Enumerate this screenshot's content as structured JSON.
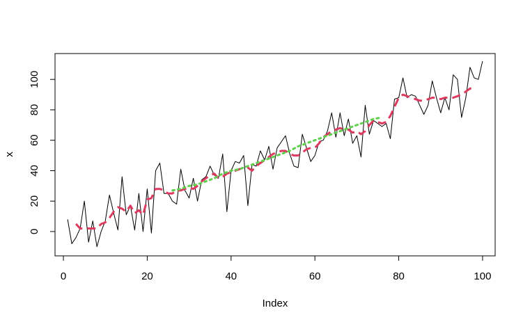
{
  "chart_data": {
    "type": "line",
    "title": "",
    "xlabel": "Index",
    "ylabel": "x",
    "xlim": [
      -2,
      103
    ],
    "ylim": [
      -16,
      117
    ],
    "xticks": [
      0,
      20,
      40,
      60,
      80,
      100
    ],
    "yticks": [
      0,
      20,
      40,
      60,
      80,
      100
    ],
    "grid": false,
    "legend": "none",
    "series": [
      {
        "style": "solid",
        "color": "#000000",
        "x": [
          1,
          2,
          3,
          4,
          5,
          6,
          7,
          8,
          9,
          10,
          11,
          12,
          13,
          14,
          15,
          16,
          17,
          18,
          19,
          20,
          21,
          22,
          23,
          24,
          25,
          26,
          27,
          28,
          29,
          30,
          31,
          32,
          33,
          34,
          35,
          36,
          37,
          38,
          39,
          40,
          41,
          42,
          43,
          44,
          45,
          46,
          47,
          48,
          49,
          50,
          51,
          52,
          53,
          54,
          55,
          56,
          57,
          58,
          59,
          60,
          61,
          62,
          63,
          64,
          65,
          66,
          67,
          68,
          69,
          70,
          71,
          72,
          73,
          74,
          75,
          76,
          77,
          78,
          79,
          80,
          81,
          82,
          83,
          84,
          85,
          86,
          87,
          88,
          89,
          90,
          91,
          92,
          93,
          94,
          95,
          96,
          97,
          98,
          99,
          100
        ],
        "y": [
          8,
          -8,
          -4,
          2,
          20,
          -7,
          7,
          -10,
          0,
          7,
          24,
          12,
          1,
          36,
          11,
          17,
          1,
          25,
          0,
          28,
          -1,
          40,
          45,
          25,
          25,
          20,
          18,
          41,
          27,
          22,
          35,
          20,
          34,
          36,
          43,
          37,
          35,
          51,
          13,
          40,
          46,
          45,
          50,
          17,
          44,
          43,
          53,
          47,
          56,
          41,
          55,
          59,
          63,
          51,
          43,
          42,
          64,
          55,
          46,
          50,
          59,
          60,
          66,
          78,
          62,
          78,
          63,
          74,
          58,
          63,
          49,
          83,
          64,
          73,
          71,
          69,
          71,
          61,
          87,
          88,
          101,
          88,
          90,
          89,
          83,
          77,
          83,
          99,
          88,
          78,
          88,
          80,
          103,
          100,
          75,
          88,
          108,
          101,
          100,
          112
        ]
      },
      {
        "style": "dashed",
        "color": "#dc3a5e",
        "x": [
          3,
          4,
          5,
          6,
          7,
          8,
          9,
          10,
          11,
          12,
          13,
          14,
          15,
          16,
          17,
          18,
          19,
          20,
          21,
          22,
          23,
          24,
          25,
          26,
          27,
          28,
          29,
          30,
          31,
          32,
          33,
          34,
          35,
          36,
          37,
          38,
          39,
          40,
          41,
          42,
          43,
          44,
          45,
          46,
          47,
          48,
          49,
          50,
          51,
          52,
          53,
          54,
          55,
          56,
          57,
          58,
          59,
          60,
          61,
          62,
          63,
          64,
          65,
          66,
          67,
          68,
          69,
          70,
          71,
          72,
          73,
          74,
          75,
          76,
          77,
          78,
          79,
          80,
          81,
          82,
          83,
          84,
          85,
          86,
          87,
          88,
          89,
          90,
          91,
          92,
          93,
          94,
          95,
          96,
          97,
          98
        ],
        "y": [
          5,
          2,
          2,
          2,
          2,
          2,
          5,
          6,
          9,
          13,
          16,
          15,
          13,
          17,
          12,
          14,
          11,
          21,
          22,
          28,
          28,
          27,
          25,
          25,
          27,
          27,
          28,
          29,
          28,
          30,
          33,
          35,
          37,
          38,
          35,
          36,
          38,
          39,
          40,
          41,
          42,
          42,
          40,
          43,
          45,
          47,
          49,
          51,
          52,
          53,
          53,
          51,
          50,
          50,
          52,
          54,
          55,
          55,
          58,
          62,
          64,
          66,
          67,
          68,
          67,
          67,
          65,
          66,
          64,
          66,
          70,
          73,
          72,
          71,
          72,
          76,
          82,
          88,
          90,
          89,
          88,
          87,
          86,
          86,
          87,
          88,
          88,
          87,
          88,
          88,
          88,
          89,
          90,
          92,
          94,
          94
        ]
      },
      {
        "style": "dotted",
        "color": "#61d04f",
        "x": [
          26,
          28,
          30,
          32,
          34,
          36,
          38,
          40,
          42,
          44,
          46,
          48,
          50,
          52,
          54,
          56,
          58,
          60,
          62,
          64,
          66,
          68,
          70,
          72,
          74,
          76
        ],
        "y": [
          27,
          28,
          30,
          31,
          33,
          35,
          38,
          40,
          41,
          43,
          45,
          47,
          49,
          51,
          53,
          56,
          58,
          60,
          62,
          64,
          66,
          68,
          70,
          72,
          74,
          75
        ]
      }
    ]
  }
}
